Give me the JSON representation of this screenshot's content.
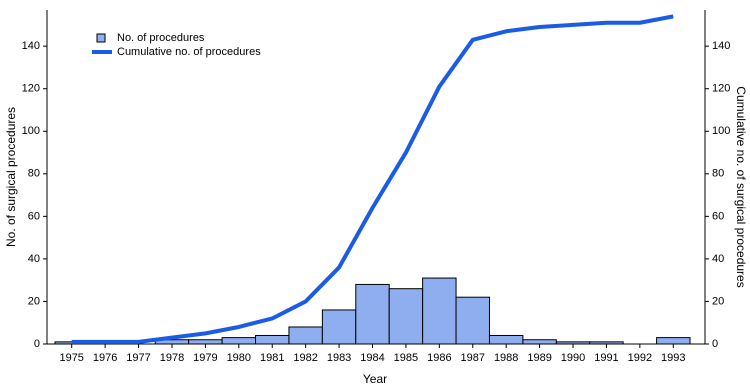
{
  "chart_data": {
    "type": "bar",
    "x_label": "Year",
    "y_label": "No. of surgical procedures",
    "y2_label": "Cumulative no. of surgical procedures",
    "categories": [
      "1975",
      "1976",
      "1977",
      "1978",
      "1979",
      "1980",
      "1981",
      "1982",
      "1983",
      "1984",
      "1985",
      "1986",
      "1987",
      "1988",
      "1989",
      "1990",
      "1991",
      "1992",
      "1993"
    ],
    "series": [
      {
        "name": "No. of procedures",
        "type": "bar",
        "color": "#8eaef0",
        "values": [
          1,
          0,
          0,
          2,
          2,
          3,
          4,
          8,
          16,
          28,
          26,
          31,
          22,
          4,
          2,
          1,
          1,
          0,
          3
        ]
      },
      {
        "name": "Cumulative no. of procedures",
        "type": "line",
        "axis": "y2",
        "color": "#1a5ce6",
        "values": [
          1,
          1,
          1,
          3,
          5,
          8,
          12,
          20,
          36,
          64,
          90,
          121,
          143,
          147,
          149,
          150,
          151,
          151,
          154
        ]
      }
    ],
    "ylim": [
      0,
      157
    ],
    "yticks": [
      0,
      20,
      40,
      60,
      80,
      100,
      120,
      140
    ],
    "y2lim": [
      0,
      157
    ],
    "y2ticks": [
      0,
      20,
      40,
      60,
      80,
      100,
      120,
      140
    ],
    "legend": "top-left",
    "grid": false
  }
}
